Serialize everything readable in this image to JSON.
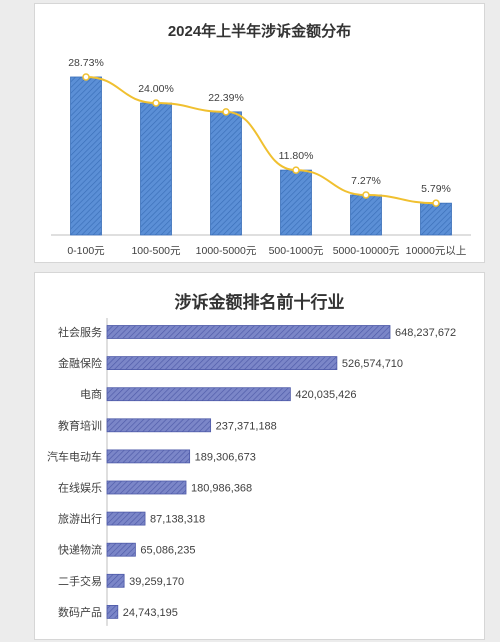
{
  "chart_data": [
    {
      "type": "bar",
      "title": "2024年上半年涉诉金额分布",
      "categories": [
        "0-100元",
        "100-500元",
        "1000-5000元",
        "500-1000元",
        "5000-10000元",
        "10000元以上"
      ],
      "values": [
        28.73,
        24.0,
        22.39,
        11.8,
        7.27,
        5.79
      ],
      "data_labels": [
        "28.73%",
        "24.00%",
        "22.39%",
        "11.80%",
        "7.27%",
        "5.79%"
      ],
      "overlay_line": true,
      "ylim": [
        0,
        32
      ],
      "grid": false,
      "colors": {
        "bar": "#5b8fd6",
        "bar_edge": "#3a6fb8",
        "line": "#f0c030",
        "marker_fill": "#ffffff"
      }
    },
    {
      "type": "bar",
      "orientation": "horizontal",
      "title": "涉诉金额排名前十行业",
      "categories": [
        "社会服务",
        "金融保险",
        "电商",
        "教育培训",
        "汽车电动车",
        "在线娱乐",
        "旅游出行",
        "快递物流",
        "二手交易",
        "数码产品"
      ],
      "values": [
        648237672,
        526574710,
        420035426,
        237371188,
        189306673,
        180986368,
        87138318,
        65086235,
        39259170,
        24743195
      ],
      "data_labels": [
        "648,237,672",
        "526,574,710",
        "420,035,426",
        "237,371,188",
        "189,306,673",
        "180,986,368",
        "87,138,318",
        "65,086,235",
        "39,259,170",
        "24,743,195"
      ],
      "grid": false,
      "colors": {
        "bar": "#7b86c8",
        "bar_edge": "#4e5aa8"
      }
    }
  ]
}
